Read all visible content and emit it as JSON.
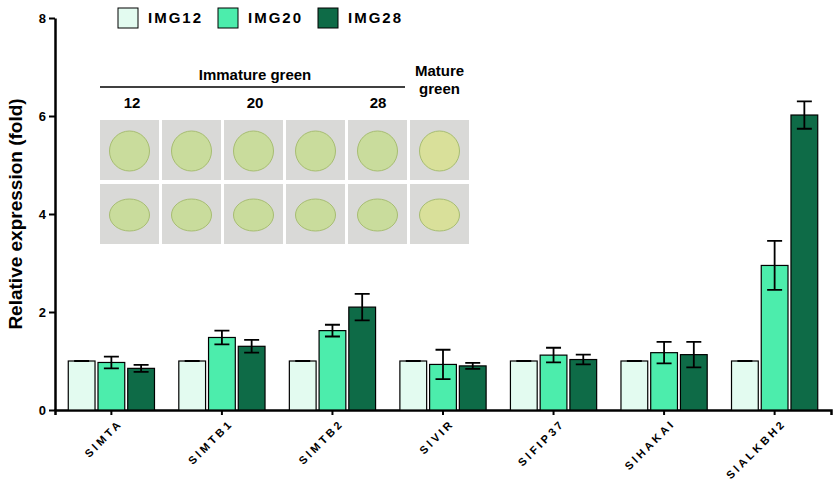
{
  "chart_data": {
    "type": "bar",
    "y_label": "Relative expression (fold)",
    "categories": [
      "SlMTA",
      "SlMTB1",
      "SlMTB2",
      "SlVIR",
      "SlFIP37",
      "SlHAKAI",
      "SlALKBH2"
    ],
    "series": [
      {
        "name": "IMG12",
        "color": "#e3fbf0",
        "values": [
          1,
          1,
          1,
          1,
          1,
          1,
          1
        ],
        "errors": [
          0,
          0,
          0,
          0,
          0,
          0,
          0
        ]
      },
      {
        "name": "IMG20",
        "color": "#4cedac",
        "values": [
          0.97,
          1.48,
          1.62,
          0.93,
          1.12,
          1.17,
          2.95
        ],
        "errors": [
          0.12,
          0.14,
          0.12,
          0.3,
          0.15,
          0.22,
          0.5
        ]
      },
      {
        "name": "IMG28",
        "color": "#0e6b47",
        "values": [
          0.85,
          1.3,
          2.1,
          0.9,
          1.03,
          1.13,
          6.02
        ],
        "errors": [
          0.07,
          0.13,
          0.27,
          0.06,
          0.1,
          0.26,
          0.28
        ]
      }
    ],
    "ylim": [
      0,
      8
    ],
    "yticks": [
      0,
      2,
      4,
      6,
      8
    ],
    "legend": "top-left",
    "annotations": [
      "Immature green",
      "12",
      "20",
      "28",
      "Mature green"
    ]
  }
}
